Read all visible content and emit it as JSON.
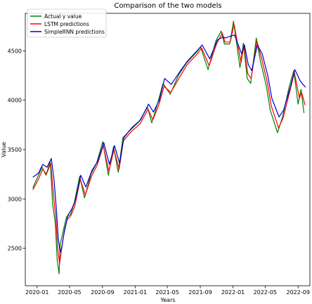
{
  "chart_data": {
    "type": "line",
    "title": "Comparison of the two models",
    "xlabel": "Years",
    "ylabel": "Value",
    "xlim": [
      "2019-11-18",
      "2022-10-15"
    ],
    "ylim": [
      2120,
      4880
    ],
    "x_ticks": [
      "2020-01",
      "2020-05",
      "2020-09",
      "2021-01",
      "2021-05",
      "2021-09",
      "2022-01",
      "2022-05",
      "2022-09"
    ],
    "y_ticks": [
      2500,
      3000,
      3500,
      4000,
      4500
    ],
    "grid": false,
    "legend_position": "top-left",
    "series": [
      {
        "name": "Actual y value",
        "color": "#008000",
        "points": [
          [
            "2019-12-16",
            3110
          ],
          [
            "2020-01-06",
            3240
          ],
          [
            "2020-01-20",
            3320
          ],
          [
            "2020-02-03",
            3240
          ],
          [
            "2020-02-19",
            3380
          ],
          [
            "2020-02-28",
            2950
          ],
          [
            "2020-03-09",
            2750
          ],
          [
            "2020-03-16",
            2380
          ],
          [
            "2020-03-23",
            2240
          ],
          [
            "2020-03-27",
            2540
          ],
          [
            "2020-04-06",
            2660
          ],
          [
            "2020-04-20",
            2820
          ],
          [
            "2020-05-04",
            2840
          ],
          [
            "2020-05-18",
            2950
          ],
          [
            "2020-06-08",
            3230
          ],
          [
            "2020-06-26",
            3010
          ],
          [
            "2020-07-20",
            3250
          ],
          [
            "2020-08-10",
            3360
          ],
          [
            "2020-09-02",
            3580
          ],
          [
            "2020-09-23",
            3240
          ],
          [
            "2020-10-12",
            3530
          ],
          [
            "2020-10-30",
            3270
          ],
          [
            "2020-11-16",
            3620
          ],
          [
            "2020-12-15",
            3700
          ],
          [
            "2021-01-15",
            3780
          ],
          [
            "2021-02-16",
            3930
          ],
          [
            "2021-03-04",
            3770
          ],
          [
            "2021-03-26",
            3970
          ],
          [
            "2021-04-15",
            4170
          ],
          [
            "2021-05-12",
            4060
          ],
          [
            "2021-06-11",
            4250
          ],
          [
            "2021-07-12",
            4380
          ],
          [
            "2021-08-16",
            4480
          ],
          [
            "2021-09-02",
            4540
          ],
          [
            "2021-09-30",
            4310
          ],
          [
            "2021-10-29",
            4600
          ],
          [
            "2021-11-18",
            4700
          ],
          [
            "2021-11-30",
            4570
          ],
          [
            "2021-12-20",
            4570
          ],
          [
            "2022-01-03",
            4800
          ],
          [
            "2022-01-27",
            4330
          ],
          [
            "2022-02-09",
            4580
          ],
          [
            "2022-02-23",
            4220
          ],
          [
            "2022-03-08",
            4170
          ],
          [
            "2022-03-29",
            4630
          ],
          [
            "2022-04-14",
            4390
          ],
          [
            "2022-05-05",
            4150
          ],
          [
            "2022-05-20",
            3900
          ],
          [
            "2022-06-16",
            3670
          ],
          [
            "2022-07-05",
            3830
          ],
          [
            "2022-07-29",
            4130
          ],
          [
            "2022-08-16",
            4300
          ],
          [
            "2022-09-01",
            3960
          ],
          [
            "2022-09-12",
            4110
          ],
          [
            "2022-09-23",
            3870
          ]
        ]
      },
      {
        "name": "LSTM predictions",
        "color": "#ff0000",
        "points": [
          [
            "2019-12-16",
            3090
          ],
          [
            "2020-01-06",
            3200
          ],
          [
            "2020-01-22",
            3300
          ],
          [
            "2020-02-05",
            3250
          ],
          [
            "2020-02-21",
            3360
          ],
          [
            "2020-03-02",
            3050
          ],
          [
            "2020-03-11",
            2800
          ],
          [
            "2020-03-18",
            2500
          ],
          [
            "2020-03-25",
            2340
          ],
          [
            "2020-03-31",
            2460
          ],
          [
            "2020-04-08",
            2620
          ],
          [
            "2020-04-22",
            2790
          ],
          [
            "2020-05-06",
            2830
          ],
          [
            "2020-05-20",
            2920
          ],
          [
            "2020-06-10",
            3200
          ],
          [
            "2020-06-29",
            3040
          ],
          [
            "2020-07-22",
            3230
          ],
          [
            "2020-08-12",
            3340
          ],
          [
            "2020-09-04",
            3540
          ],
          [
            "2020-09-25",
            3280
          ],
          [
            "2020-10-14",
            3500
          ],
          [
            "2020-11-02",
            3300
          ],
          [
            "2020-11-18",
            3590
          ],
          [
            "2020-12-17",
            3680
          ],
          [
            "2021-01-19",
            3760
          ],
          [
            "2021-02-18",
            3910
          ],
          [
            "2021-03-08",
            3800
          ],
          [
            "2021-03-30",
            3950
          ],
          [
            "2021-04-19",
            4140
          ],
          [
            "2021-05-14",
            4080
          ],
          [
            "2021-06-15",
            4230
          ],
          [
            "2021-07-14",
            4360
          ],
          [
            "2021-08-18",
            4460
          ],
          [
            "2021-09-06",
            4530
          ],
          [
            "2021-10-04",
            4350
          ],
          [
            "2021-11-02",
            4580
          ],
          [
            "2021-11-22",
            4680
          ],
          [
            "2021-12-02",
            4590
          ],
          [
            "2021-12-22",
            4590
          ],
          [
            "2022-01-05",
            4770
          ],
          [
            "2022-01-31",
            4380
          ],
          [
            "2022-02-11",
            4560
          ],
          [
            "2022-02-25",
            4270
          ],
          [
            "2022-03-10",
            4220
          ],
          [
            "2022-03-31",
            4600
          ],
          [
            "2022-04-18",
            4420
          ],
          [
            "2022-05-09",
            4180
          ],
          [
            "2022-05-24",
            3940
          ],
          [
            "2022-06-20",
            3720
          ],
          [
            "2022-07-07",
            3820
          ],
          [
            "2022-08-02",
            4100
          ],
          [
            "2022-08-18",
            4280
          ],
          [
            "2022-09-06",
            4020
          ],
          [
            "2022-09-14",
            4080
          ],
          [
            "2022-09-27",
            3950
          ]
        ]
      },
      {
        "name": "SimpleRNN predictions",
        "color": "#0000cc",
        "points": [
          [
            "2019-12-16",
            3220
          ],
          [
            "2020-01-06",
            3260
          ],
          [
            "2020-01-22",
            3350
          ],
          [
            "2020-02-07",
            3320
          ],
          [
            "2020-02-23",
            3410
          ],
          [
            "2020-03-04",
            3200
          ],
          [
            "2020-03-13",
            2900
          ],
          [
            "2020-03-20",
            2600
          ],
          [
            "2020-03-27",
            2460
          ],
          [
            "2020-04-03",
            2520
          ],
          [
            "2020-04-12",
            2680
          ],
          [
            "2020-04-26",
            2840
          ],
          [
            "2020-05-10",
            2900
          ],
          [
            "2020-05-24",
            3000
          ],
          [
            "2020-06-12",
            3240
          ],
          [
            "2020-07-01",
            3120
          ],
          [
            "2020-07-24",
            3290
          ],
          [
            "2020-08-14",
            3380
          ],
          [
            "2020-09-06",
            3570
          ],
          [
            "2020-09-27",
            3350
          ],
          [
            "2020-10-16",
            3540
          ],
          [
            "2020-11-04",
            3360
          ],
          [
            "2020-11-20",
            3620
          ],
          [
            "2020-12-19",
            3720
          ],
          [
            "2021-01-21",
            3800
          ],
          [
            "2021-02-20",
            3960
          ],
          [
            "2021-03-10",
            3880
          ],
          [
            "2021-04-01",
            4000
          ],
          [
            "2021-04-21",
            4220
          ],
          [
            "2021-05-16",
            4160
          ],
          [
            "2021-06-17",
            4290
          ],
          [
            "2021-07-16",
            4400
          ],
          [
            "2021-08-20",
            4500
          ],
          [
            "2021-09-08",
            4560
          ],
          [
            "2021-10-06",
            4420
          ],
          [
            "2021-11-04",
            4610
          ],
          [
            "2021-11-24",
            4640
          ],
          [
            "2021-12-04",
            4630
          ],
          [
            "2021-12-24",
            4650
          ],
          [
            "2022-01-07",
            4660
          ],
          [
            "2022-02-02",
            4470
          ],
          [
            "2022-02-13",
            4560
          ],
          [
            "2022-02-27",
            4360
          ],
          [
            "2022-03-12",
            4300
          ],
          [
            "2022-04-02",
            4560
          ],
          [
            "2022-04-20",
            4470
          ],
          [
            "2022-05-11",
            4250
          ],
          [
            "2022-05-26",
            4020
          ],
          [
            "2022-06-22",
            3830
          ],
          [
            "2022-07-09",
            3900
          ],
          [
            "2022-08-04",
            4140
          ],
          [
            "2022-08-20",
            4310
          ],
          [
            "2022-09-08",
            4200
          ],
          [
            "2022-09-16",
            4170
          ],
          [
            "2022-09-29",
            4130
          ]
        ]
      }
    ]
  }
}
